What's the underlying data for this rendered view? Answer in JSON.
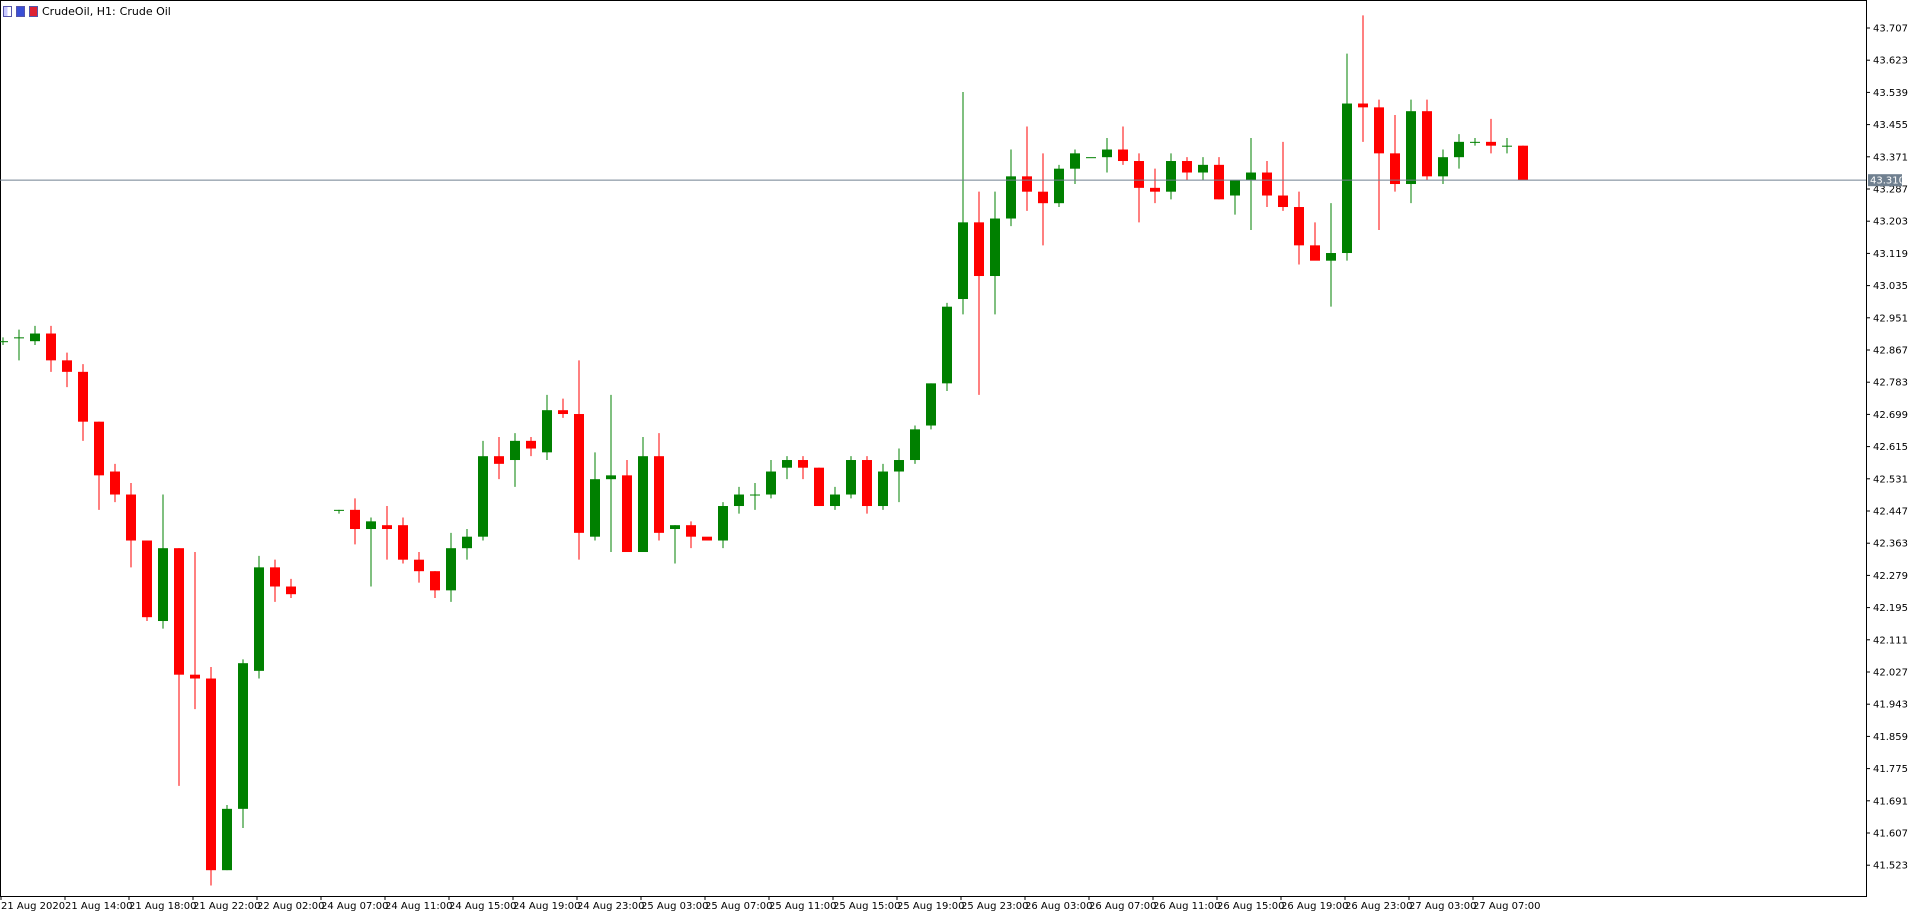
{
  "header": {
    "symbol_label": "CrudeOil, H1:",
    "name_label": "Crude Oil",
    "icons": [
      "chart-type-icon",
      "one-click-trading-icon",
      "signal-icon"
    ]
  },
  "colors": {
    "bull": "#008000",
    "bear": "#ff0000",
    "background": "#ffffff",
    "grid_line": "#000000",
    "current_price_line": "#708090",
    "current_price_tag": "#708090"
  },
  "current_price": {
    "value": 43.31,
    "label": "43.310"
  },
  "chart_data": {
    "type": "candlestick",
    "timeframe": "H1",
    "symbol": "CrudeOil",
    "ylim": [
      41.45,
      43.78
    ],
    "y_ticks": [
      "43.707",
      "43.623",
      "43.539",
      "43.455",
      "43.371",
      "43.287",
      "43.203",
      "43.119",
      "43.035",
      "42.951",
      "42.867",
      "42.783",
      "42.699",
      "42.615",
      "42.531",
      "42.447",
      "42.363",
      "42.279",
      "42.195",
      "42.111",
      "42.027",
      "41.943",
      "41.859",
      "41.775",
      "41.691",
      "41.607",
      "41.523"
    ],
    "x_ticks": [
      "21 Aug 2020",
      "21 Aug 14:00",
      "21 Aug 18:00",
      "21 Aug 22:00",
      "22 Aug 02:00",
      "24 Aug 07:00",
      "24 Aug 11:00",
      "24 Aug 15:00",
      "24 Aug 19:00",
      "24 Aug 23:00",
      "25 Aug 03:00",
      "25 Aug 07:00",
      "25 Aug 11:00",
      "25 Aug 15:00",
      "25 Aug 19:00",
      "25 Aug 23:00",
      "26 Aug 03:00",
      "26 Aug 07:00",
      "26 Aug 11:00",
      "26 Aug 15:00",
      "26 Aug 19:00",
      "26 Aug 23:00",
      "27 Aug 03:00",
      "27 Aug 07:00"
    ],
    "candles": [
      {
        "o": 42.89,
        "h": 42.9,
        "l": 42.88,
        "c": 42.89
      },
      {
        "o": 42.9,
        "h": 42.92,
        "l": 42.84,
        "c": 42.9
      },
      {
        "o": 42.89,
        "h": 42.93,
        "l": 42.88,
        "c": 42.91
      },
      {
        "o": 42.91,
        "h": 42.93,
        "l": 42.81,
        "c": 42.84
      },
      {
        "o": 42.84,
        "h": 42.86,
        "l": 42.77,
        "c": 42.81
      },
      {
        "o": 42.81,
        "h": 42.83,
        "l": 42.63,
        "c": 42.68
      },
      {
        "o": 42.68,
        "h": 42.68,
        "l": 42.45,
        "c": 42.54
      },
      {
        "o": 42.55,
        "h": 42.57,
        "l": 42.47,
        "c": 42.49
      },
      {
        "o": 42.49,
        "h": 42.52,
        "l": 42.3,
        "c": 42.37
      },
      {
        "o": 42.37,
        "h": 42.37,
        "l": 42.16,
        "c": 42.17
      },
      {
        "o": 42.16,
        "h": 42.49,
        "l": 42.14,
        "c": 42.35
      },
      {
        "o": 42.35,
        "h": 42.35,
        "l": 41.73,
        "c": 42.02
      },
      {
        "o": 42.02,
        "h": 42.34,
        "l": 41.93,
        "c": 42.01
      },
      {
        "o": 42.01,
        "h": 42.04,
        "l": 41.47,
        "c": 41.51
      },
      {
        "o": 41.51,
        "h": 41.68,
        "l": 41.51,
        "c": 41.67
      },
      {
        "o": 41.67,
        "h": 42.06,
        "l": 41.62,
        "c": 42.05
      },
      {
        "o": 42.03,
        "h": 42.33,
        "l": 42.01,
        "c": 42.3
      },
      {
        "o": 42.3,
        "h": 42.32,
        "l": 42.21,
        "c": 42.25
      },
      {
        "o": 42.25,
        "h": 42.27,
        "l": 42.22,
        "c": 42.23
      },
      null,
      null,
      {
        "o": 42.45,
        "h": 42.45,
        "l": 42.44,
        "c": 42.45
      },
      {
        "o": 42.45,
        "h": 42.48,
        "l": 42.36,
        "c": 42.4
      },
      {
        "o": 42.4,
        "h": 42.43,
        "l": 42.25,
        "c": 42.42
      },
      {
        "o": 42.41,
        "h": 42.46,
        "l": 42.32,
        "c": 42.4
      },
      {
        "o": 42.41,
        "h": 42.43,
        "l": 42.31,
        "c": 42.32
      },
      {
        "o": 42.32,
        "h": 42.34,
        "l": 42.26,
        "c": 42.29
      },
      {
        "o": 42.29,
        "h": 42.29,
        "l": 42.22,
        "c": 42.24
      },
      {
        "o": 42.24,
        "h": 42.39,
        "l": 42.21,
        "c": 42.35
      },
      {
        "o": 42.35,
        "h": 42.4,
        "l": 42.32,
        "c": 42.38
      },
      {
        "o": 42.38,
        "h": 42.63,
        "l": 42.37,
        "c": 42.59
      },
      {
        "o": 42.59,
        "h": 42.64,
        "l": 42.53,
        "c": 42.57
      },
      {
        "o": 42.58,
        "h": 42.65,
        "l": 42.51,
        "c": 42.63
      },
      {
        "o": 42.63,
        "h": 42.64,
        "l": 42.59,
        "c": 42.61
      },
      {
        "o": 42.6,
        "h": 42.75,
        "l": 42.58,
        "c": 42.71
      },
      {
        "o": 42.71,
        "h": 42.74,
        "l": 42.69,
        "c": 42.7
      },
      {
        "o": 42.7,
        "h": 42.84,
        "l": 42.32,
        "c": 42.39
      },
      {
        "o": 42.38,
        "h": 42.6,
        "l": 42.37,
        "c": 42.53
      },
      {
        "o": 42.53,
        "h": 42.75,
        "l": 42.34,
        "c": 42.54
      },
      {
        "o": 42.54,
        "h": 42.58,
        "l": 42.34,
        "c": 42.34
      },
      {
        "o": 42.34,
        "h": 42.64,
        "l": 42.34,
        "c": 42.59
      },
      {
        "o": 42.59,
        "h": 42.65,
        "l": 42.37,
        "c": 42.39
      },
      {
        "o": 42.4,
        "h": 42.41,
        "l": 42.31,
        "c": 42.41
      },
      {
        "o": 42.41,
        "h": 42.42,
        "l": 42.35,
        "c": 42.38
      },
      {
        "o": 42.38,
        "h": 42.38,
        "l": 42.38,
        "c": 42.37
      },
      {
        "o": 42.37,
        "h": 42.47,
        "l": 42.35,
        "c": 42.46
      },
      {
        "o": 42.46,
        "h": 42.51,
        "l": 42.44,
        "c": 42.49
      },
      {
        "o": 42.49,
        "h": 42.52,
        "l": 42.45,
        "c": 42.49
      },
      {
        "o": 42.49,
        "h": 42.58,
        "l": 42.48,
        "c": 42.55
      },
      {
        "o": 42.56,
        "h": 42.59,
        "l": 42.53,
        "c": 42.58
      },
      {
        "o": 42.58,
        "h": 42.59,
        "l": 42.53,
        "c": 42.56
      },
      {
        "o": 42.56,
        "h": 42.56,
        "l": 42.46,
        "c": 42.46
      },
      {
        "o": 42.46,
        "h": 42.51,
        "l": 42.45,
        "c": 42.49
      },
      {
        "o": 42.49,
        "h": 42.59,
        "l": 42.48,
        "c": 42.58
      },
      {
        "o": 42.58,
        "h": 42.59,
        "l": 42.44,
        "c": 42.46
      },
      {
        "o": 42.46,
        "h": 42.57,
        "l": 42.45,
        "c": 42.55
      },
      {
        "o": 42.55,
        "h": 42.61,
        "l": 42.47,
        "c": 42.58
      },
      {
        "o": 42.58,
        "h": 42.67,
        "l": 42.57,
        "c": 42.66
      },
      {
        "o": 42.67,
        "h": 42.78,
        "l": 42.66,
        "c": 42.78
      },
      {
        "o": 42.78,
        "h": 42.99,
        "l": 42.76,
        "c": 42.98
      },
      {
        "o": 43.0,
        "h": 43.54,
        "l": 42.96,
        "c": 43.2
      },
      {
        "o": 43.2,
        "h": 43.28,
        "l": 42.75,
        "c": 43.06
      },
      {
        "o": 43.06,
        "h": 43.28,
        "l": 42.96,
        "c": 43.21
      },
      {
        "o": 43.21,
        "h": 43.39,
        "l": 43.19,
        "c": 43.32
      },
      {
        "o": 43.32,
        "h": 43.45,
        "l": 43.23,
        "c": 43.28
      },
      {
        "o": 43.28,
        "h": 43.38,
        "l": 43.14,
        "c": 43.25
      },
      {
        "o": 43.25,
        "h": 43.35,
        "l": 43.24,
        "c": 43.34
      },
      {
        "o": 43.34,
        "h": 43.39,
        "l": 43.3,
        "c": 43.38
      },
      {
        "o": 43.37,
        "h": 43.37,
        "l": 43.37,
        "c": 43.37
      },
      {
        "o": 43.37,
        "h": 43.42,
        "l": 43.33,
        "c": 43.39
      },
      {
        "o": 43.39,
        "h": 43.45,
        "l": 43.35,
        "c": 43.36
      },
      {
        "o": 43.36,
        "h": 43.38,
        "l": 43.2,
        "c": 43.29
      },
      {
        "o": 43.29,
        "h": 43.34,
        "l": 43.25,
        "c": 43.28
      },
      {
        "o": 43.28,
        "h": 43.38,
        "l": 43.26,
        "c": 43.36
      },
      {
        "o": 43.36,
        "h": 43.37,
        "l": 43.31,
        "c": 43.33
      },
      {
        "o": 43.33,
        "h": 43.37,
        "l": 43.31,
        "c": 43.35
      },
      {
        "o": 43.35,
        "h": 43.37,
        "l": 43.26,
        "c": 43.26
      },
      {
        "o": 43.27,
        "h": 43.31,
        "l": 43.22,
        "c": 43.31
      },
      {
        "o": 43.31,
        "h": 43.42,
        "l": 43.18,
        "c": 43.33
      },
      {
        "o": 43.33,
        "h": 43.36,
        "l": 43.24,
        "c": 43.27
      },
      {
        "o": 43.27,
        "h": 43.41,
        "l": 43.23,
        "c": 43.24
      },
      {
        "o": 43.24,
        "h": 43.28,
        "l": 43.09,
        "c": 43.14
      },
      {
        "o": 43.14,
        "h": 43.2,
        "l": 43.11,
        "c": 43.1
      },
      {
        "o": 43.1,
        "h": 43.25,
        "l": 42.98,
        "c": 43.12
      },
      {
        "o": 43.12,
        "h": 43.64,
        "l": 43.1,
        "c": 43.51
      },
      {
        "o": 43.51,
        "h": 43.74,
        "l": 43.41,
        "c": 43.5
      },
      {
        "o": 43.5,
        "h": 43.52,
        "l": 43.18,
        "c": 43.38
      },
      {
        "o": 43.38,
        "h": 43.48,
        "l": 43.28,
        "c": 43.3
      },
      {
        "o": 43.3,
        "h": 43.52,
        "l": 43.25,
        "c": 43.49
      },
      {
        "o": 43.49,
        "h": 43.52,
        "l": 43.31,
        "c": 43.32
      },
      {
        "o": 43.32,
        "h": 43.39,
        "l": 43.3,
        "c": 43.37
      },
      {
        "o": 43.37,
        "h": 43.43,
        "l": 43.34,
        "c": 43.41
      },
      {
        "o": 43.41,
        "h": 43.42,
        "l": 43.4,
        "c": 43.41
      },
      {
        "o": 43.41,
        "h": 43.47,
        "l": 43.38,
        "c": 43.4
      },
      {
        "o": 43.4,
        "h": 43.42,
        "l": 43.38,
        "c": 43.4
      },
      {
        "o": 43.4,
        "h": 43.4,
        "l": 43.31,
        "c": 43.31
      }
    ]
  }
}
